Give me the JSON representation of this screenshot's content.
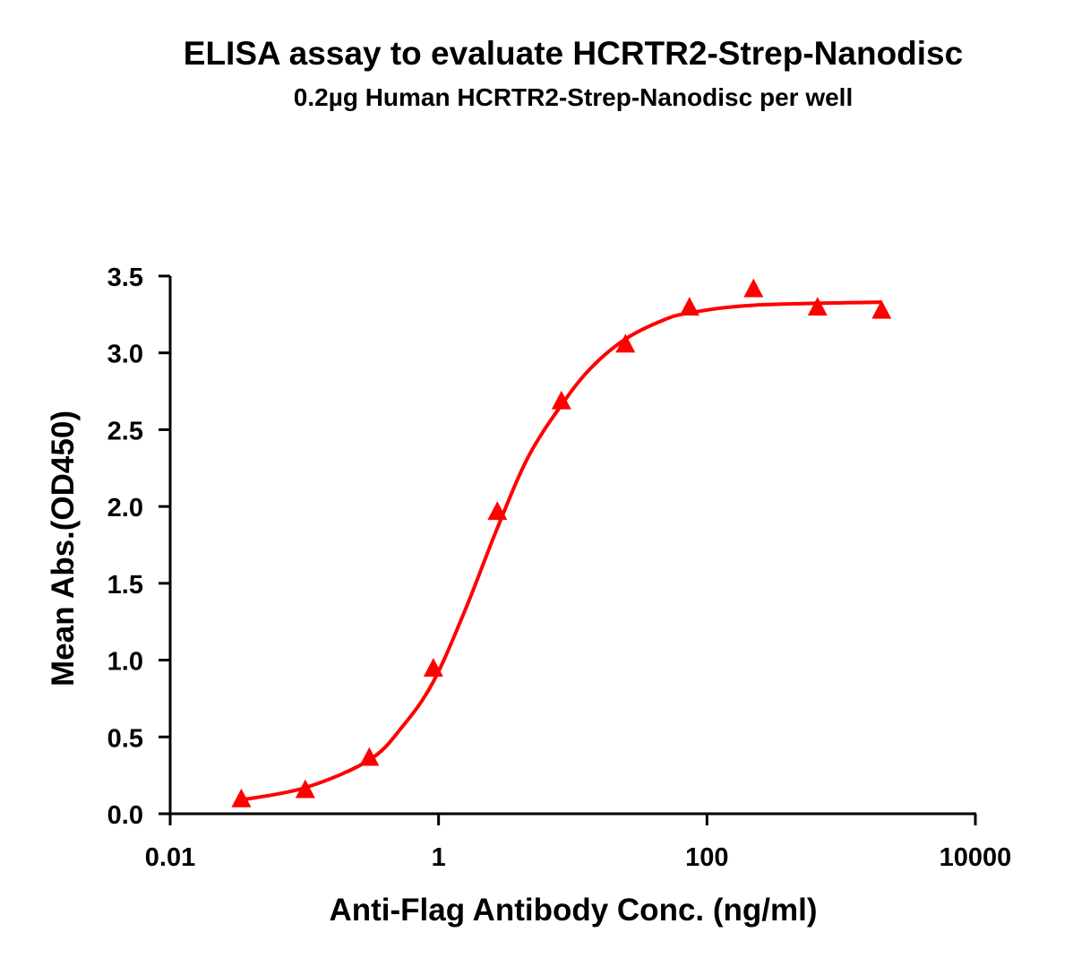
{
  "chart_data": {
    "type": "scatter",
    "title": "ELISA assay to evaluate HCRTR2-Strep-Nanodisc",
    "subtitle": "0.2µg Human HCRTR2-Strep-Nanodisc per well",
    "x_label": "Anti-Flag Antibody Conc. (ng/ml)",
    "y_label": "Mean Abs.(OD450)",
    "x_log": true,
    "color": "#ff0000",
    "x": [
      0.0339,
      0.1016,
      0.3048,
      0.9145,
      2.743,
      8.23,
      24.69,
      74.07,
      222.2,
      666.7,
      2000
    ],
    "values": [
      0.1,
      0.16,
      0.37,
      0.95,
      1.97,
      2.69,
      3.06,
      3.3,
      3.42,
      3.3,
      3.28
    ],
    "curve": {
      "x": [
        0.0339,
        0.1016,
        0.3048,
        0.541,
        0.9145,
        1.585,
        2.743,
        4.64,
        8.23,
        13.6,
        24.69,
        46.4,
        74.07,
        222.2,
        2000
      ],
      "values": [
        0.09,
        0.17,
        0.35,
        0.57,
        0.86,
        1.33,
        1.86,
        2.32,
        2.66,
        2.9,
        3.09,
        3.21,
        3.26,
        3.31,
        3.33
      ]
    },
    "xlim": [
      0.01,
      10000
    ],
    "ylim": [
      0,
      3.5
    ],
    "xticks": [
      0.01,
      1,
      100,
      10000
    ],
    "yticks": [
      {
        "value": 0,
        "label": "0.0"
      },
      0.5,
      {
        "value": 1,
        "label": "1.0"
      },
      1.5,
      {
        "value": 2,
        "label": "2.0"
      },
      2.5,
      {
        "value": 3,
        "label": "3.0"
      },
      3.5
    ]
  }
}
